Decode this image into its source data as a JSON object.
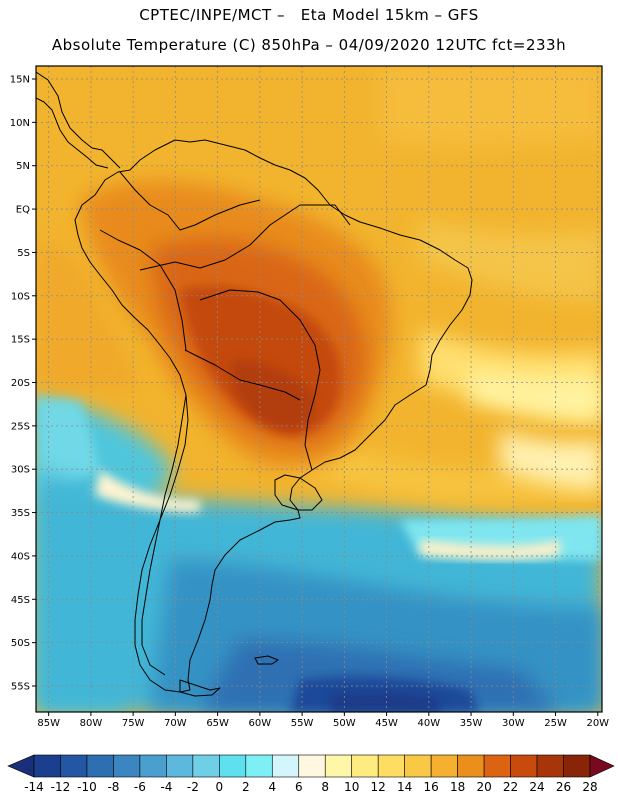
{
  "title": {
    "line1": "CPTEC/INPE/MCT –   Eta Model 15km – GFS",
    "line2": "Absolute Temperature (C) 850hPa – 04/09/2020 12UTC fct=233h"
  },
  "map": {
    "lat_labels": [
      "15N",
      "10N",
      "5N",
      "EQ",
      "5S",
      "10S",
      "15S",
      "20S",
      "25S",
      "30S",
      "35S",
      "40S",
      "45S",
      "50S",
      "55S"
    ],
    "lon_labels": [
      "85W",
      "80W",
      "75W",
      "70W",
      "65W",
      "60W",
      "55W",
      "50W",
      "45W",
      "40W",
      "35W",
      "30W",
      "25W",
      "20W"
    ],
    "lat_values": [
      15,
      10,
      5,
      0,
      -5,
      -10,
      -15,
      -20,
      -25,
      -30,
      -35,
      -40,
      -45,
      -50,
      -55
    ],
    "lon_values": [
      -85,
      -80,
      -75,
      -70,
      -65,
      -60,
      -55,
      -50,
      -45,
      -40,
      -35,
      -30,
      -25,
      -20
    ],
    "lat_range": [
      -58,
      16.5
    ],
    "lon_range": [
      -86.5,
      -19.5
    ]
  },
  "colorbar": {
    "labels": [
      "-14",
      "-12",
      "-10",
      "-8",
      "-6",
      "-4",
      "-2",
      "0",
      "2",
      "4",
      "6",
      "8",
      "10",
      "12",
      "14",
      "16",
      "18",
      "20",
      "22",
      "24",
      "26",
      "28"
    ],
    "colors": [
      "#1a3f8f",
      "#2357a3",
      "#2e6fb2",
      "#3b86c0",
      "#4a9fce",
      "#5cb8dc",
      "#6fcfe6",
      "#5fe0ef",
      "#7ef0f5",
      "#d2f6fb",
      "#fff7e0",
      "#fff7a8",
      "#ffec80",
      "#ffdc62",
      "#f9c845",
      "#f4b02e",
      "#ea8e1c",
      "#dc6312",
      "#c84a0c",
      "#a8350a",
      "#8a2408"
    ],
    "low_color": "#1a2f7a",
    "high_color": "#78091e"
  }
}
